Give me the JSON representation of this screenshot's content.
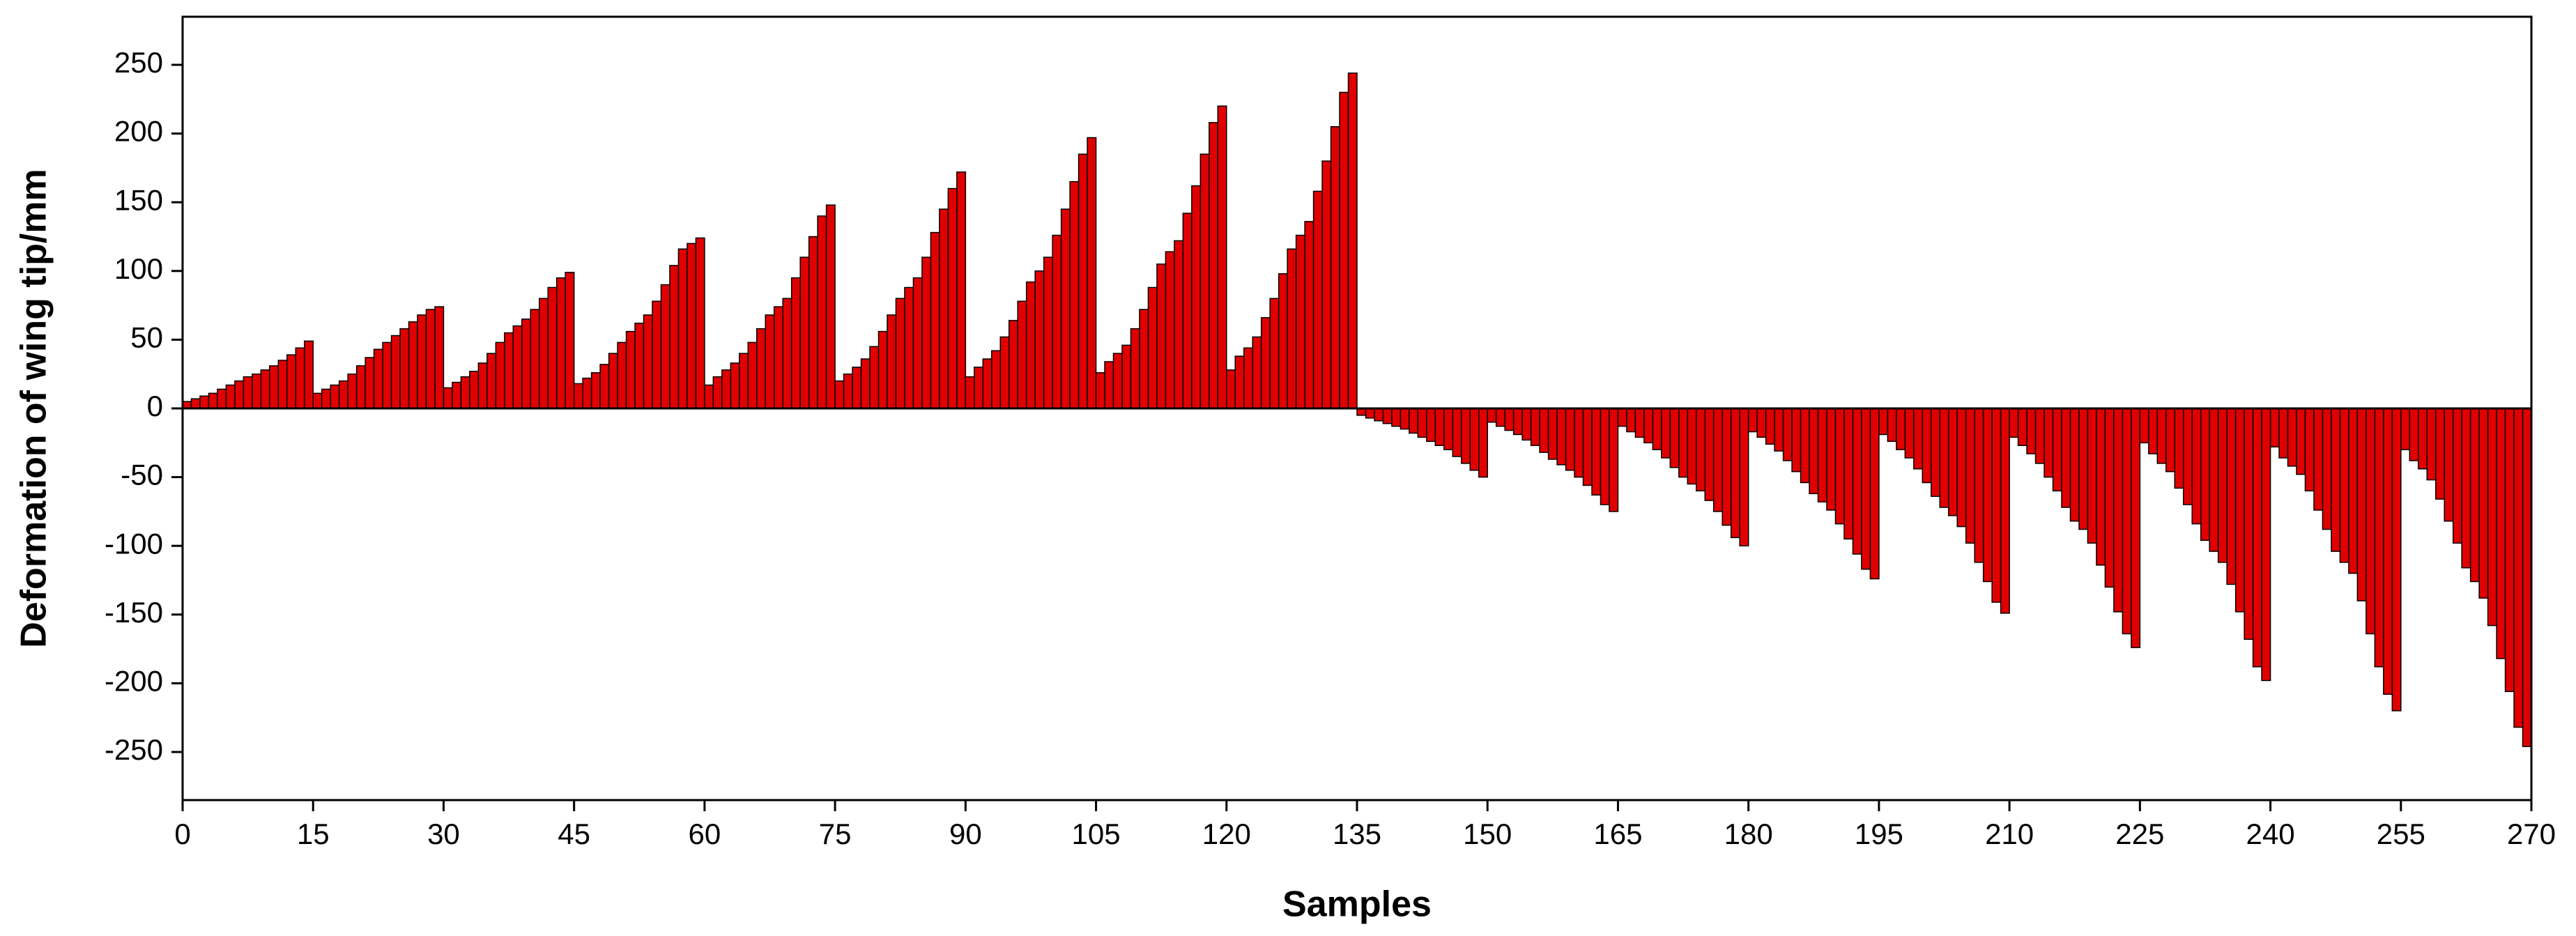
{
  "chart_data": {
    "type": "bar",
    "xlabel": "Samples",
    "ylabel": "Deformation of wing tip/mm",
    "color": "#e00000",
    "x": [
      1,
      2,
      3,
      4,
      5,
      6,
      7,
      8,
      9,
      10,
      11,
      12,
      13,
      14,
      15,
      16,
      17,
      18,
      19,
      20,
      21,
      22,
      23,
      24,
      25,
      26,
      27,
      28,
      29,
      30,
      31,
      32,
      33,
      34,
      35,
      36,
      37,
      38,
      39,
      40,
      41,
      42,
      43,
      44,
      45,
      46,
      47,
      48,
      49,
      50,
      51,
      52,
      53,
      54,
      55,
      56,
      57,
      58,
      59,
      60,
      61,
      62,
      63,
      64,
      65,
      66,
      67,
      68,
      69,
      70,
      71,
      72,
      73,
      74,
      75,
      76,
      77,
      78,
      79,
      80,
      81,
      82,
      83,
      84,
      85,
      86,
      87,
      88,
      89,
      90,
      91,
      92,
      93,
      94,
      95,
      96,
      97,
      98,
      99,
      100,
      101,
      102,
      103,
      104,
      105,
      106,
      107,
      108,
      109,
      110,
      111,
      112,
      113,
      114,
      115,
      116,
      117,
      118,
      119,
      120,
      121,
      122,
      123,
      124,
      125,
      126,
      127,
      128,
      129,
      130,
      131,
      132,
      133,
      134,
      135,
      136,
      137,
      138,
      139,
      140,
      141,
      142,
      143,
      144,
      145,
      146,
      147,
      148,
      149,
      150,
      151,
      152,
      153,
      154,
      155,
      156,
      157,
      158,
      159,
      160,
      161,
      162,
      163,
      164,
      165,
      166,
      167,
      168,
      169,
      170,
      171,
      172,
      173,
      174,
      175,
      176,
      177,
      178,
      179,
      180,
      181,
      182,
      183,
      184,
      185,
      186,
      187,
      188,
      189,
      190,
      191,
      192,
      193,
      194,
      195,
      196,
      197,
      198,
      199,
      200,
      201,
      202,
      203,
      204,
      205,
      206,
      207,
      208,
      209,
      210,
      211,
      212,
      213,
      214,
      215,
      216,
      217,
      218,
      219,
      220,
      221,
      222,
      223,
      224,
      225,
      226,
      227,
      228,
      229,
      230,
      231,
      232,
      233,
      234,
      235,
      236,
      237,
      238,
      239,
      240,
      241,
      242,
      243,
      244,
      245,
      246,
      247,
      248,
      249,
      250,
      251,
      252,
      253,
      254,
      255,
      256,
      257,
      258,
      259,
      260,
      261,
      262,
      263,
      264,
      265,
      266,
      267,
      268,
      269,
      270
    ],
    "values": [
      5,
      7,
      9,
      11,
      14,
      17,
      20,
      23,
      25,
      28,
      31,
      35,
      39,
      44,
      49,
      11,
      14,
      17,
      20,
      25,
      31,
      37,
      43,
      48,
      53,
      58,
      63,
      68,
      72,
      74,
      15,
      19,
      23,
      27,
      33,
      40,
      48,
      55,
      60,
      65,
      72,
      80,
      88,
      95,
      99,
      18,
      22,
      26,
      32,
      40,
      48,
      56,
      62,
      68,
      78,
      90,
      104,
      116,
      120,
      124,
      17,
      23,
      28,
      33,
      40,
      48,
      58,
      68,
      74,
      80,
      95,
      110,
      125,
      140,
      148,
      20,
      25,
      30,
      36,
      45,
      56,
      68,
      80,
      88,
      95,
      110,
      128,
      145,
      160,
      172,
      23,
      30,
      36,
      42,
      52,
      64,
      78,
      92,
      100,
      110,
      126,
      145,
      165,
      185,
      197,
      26,
      34,
      40,
      46,
      58,
      72,
      88,
      105,
      114,
      122,
      142,
      162,
      185,
      208,
      220,
      28,
      38,
      44,
      52,
      66,
      80,
      98,
      116,
      126,
      136,
      158,
      180,
      205,
      230,
      244,
      -5,
      -7,
      -9,
      -11,
      -13,
      -15,
      -18,
      -21,
      -24,
      -27,
      -30,
      -35,
      -40,
      -45,
      -50,
      -10,
      -13,
      -16,
      -19,
      -23,
      -27,
      -32,
      -37,
      -41,
      -45,
      -50,
      -56,
      -63,
      -70,
      -75,
      -13,
      -17,
      -21,
      -25,
      -30,
      -36,
      -43,
      -50,
      -55,
      -60,
      -67,
      -75,
      -85,
      -94,
      -100,
      -17,
      -21,
      -26,
      -31,
      -38,
      -46,
      -54,
      -62,
      -68,
      -74,
      -84,
      -95,
      -106,
      -117,
      -124,
      -19,
      -24,
      -30,
      -36,
      -44,
      -54,
      -64,
      -72,
      -78,
      -86,
      -98,
      -112,
      -126,
      -141,
      -149,
      -21,
      -27,
      -33,
      -40,
      -50,
      -60,
      -72,
      -82,
      -88,
      -98,
      -114,
      -130,
      -148,
      -164,
      -174,
      -25,
      -33,
      -40,
      -46,
      -58,
      -70,
      -84,
      -96,
      -104,
      -112,
      -128,
      -148,
      -168,
      -188,
      -198,
      -28,
      -36,
      -42,
      -48,
      -60,
      -74,
      -88,
      -104,
      -112,
      -120,
      -140,
      -164,
      -188,
      -208,
      -220,
      -30,
      -38,
      -44,
      -52,
      -66,
      -82,
      -98,
      -116,
      -126,
      -138,
      -158,
      -182,
      -206,
      -232,
      -246
    ],
    "xlim": [
      0,
      270
    ],
    "xticks": [
      0,
      15,
      30,
      45,
      60,
      75,
      90,
      105,
      120,
      135,
      150,
      165,
      180,
      195,
      210,
      225,
      240,
      255,
      270
    ],
    "ylim": [
      -285,
      285
    ],
    "yticks": [
      -250,
      -200,
      -150,
      -100,
      -50,
      0,
      50,
      100,
      150,
      200,
      250
    ]
  }
}
